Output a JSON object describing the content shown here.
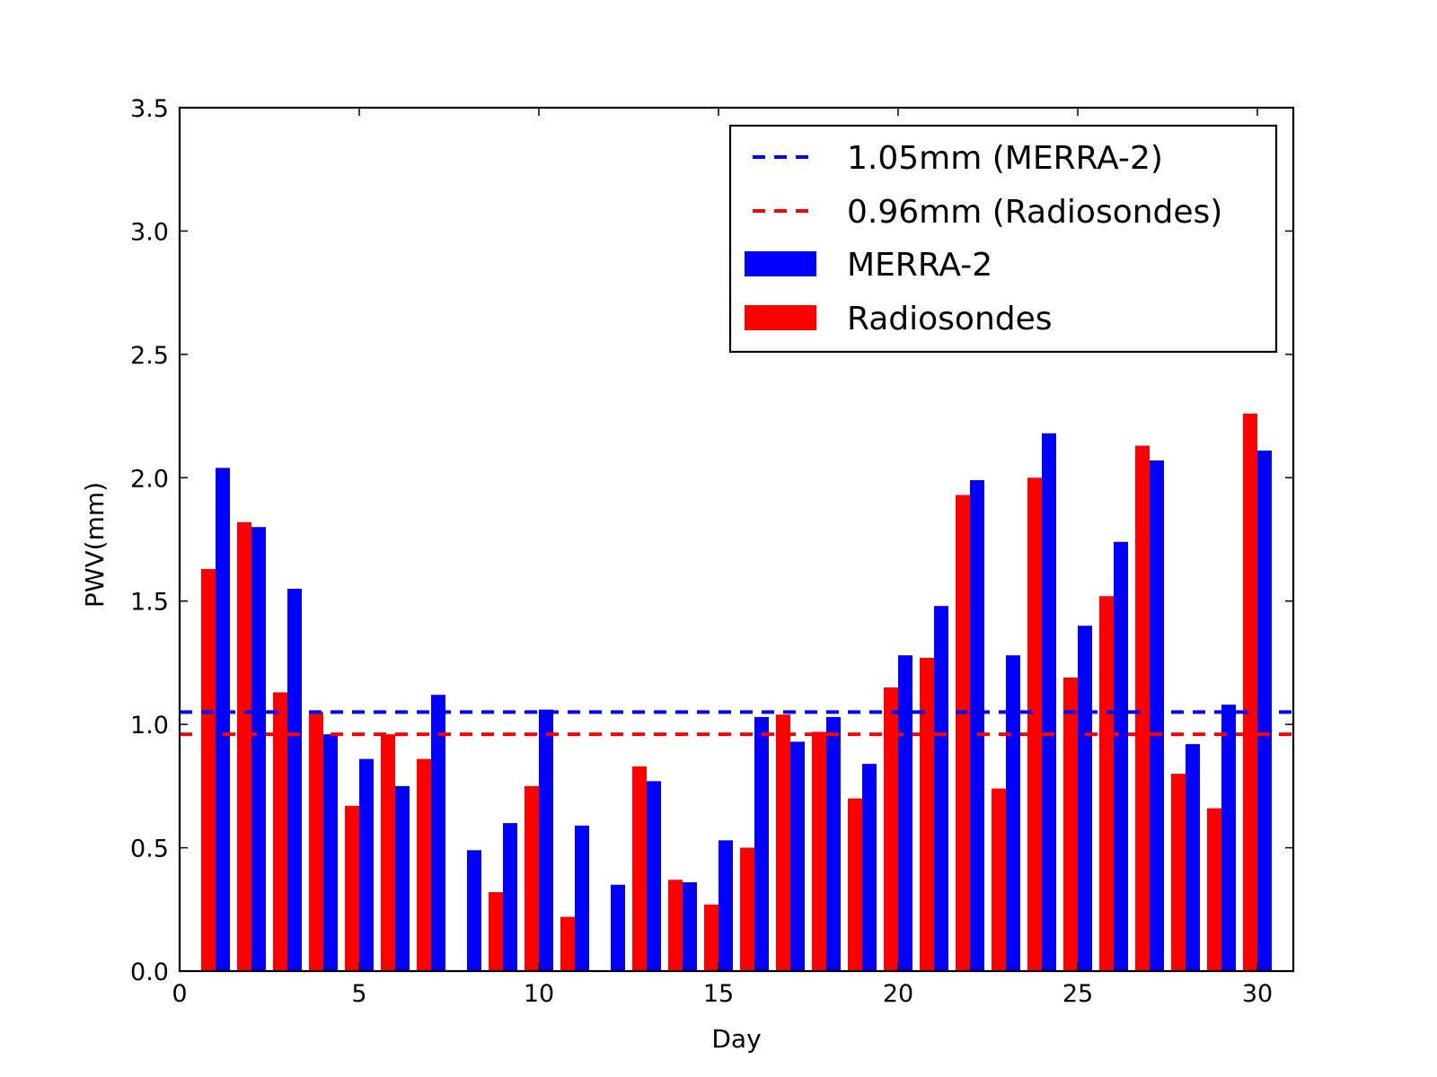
{
  "chart_data": {
    "type": "bar",
    "title": "",
    "xlabel": "Day",
    "ylabel": "PWV(mm)",
    "xlim": [
      0,
      31
    ],
    "ylim": [
      0,
      3.5
    ],
    "xticks": [
      0,
      5,
      10,
      15,
      20,
      25,
      30
    ],
    "yticks": [
      0.0,
      0.5,
      1.0,
      1.5,
      2.0,
      2.5,
      3.0,
      3.5
    ],
    "xtick_labels": [
      "0",
      "5",
      "10",
      "15",
      "20",
      "25",
      "30"
    ],
    "ytick_labels": [
      "0.0",
      "0.5",
      "1.0",
      "1.5",
      "2.0",
      "2.5",
      "3.0",
      "3.5"
    ],
    "grid": false,
    "legend_position": "top-right",
    "days": [
      1,
      2,
      3,
      4,
      5,
      6,
      7,
      8,
      9,
      10,
      11,
      12,
      13,
      14,
      15,
      16,
      17,
      18,
      19,
      20,
      21,
      22,
      23,
      24,
      25,
      26,
      27,
      28,
      29,
      30
    ],
    "series": [
      {
        "name": "Radiosondes",
        "color": "#ff0000",
        "values": [
          1.63,
          1.82,
          1.13,
          1.05,
          0.67,
          0.96,
          0.86,
          null,
          0.32,
          0.75,
          0.22,
          null,
          0.83,
          0.37,
          0.27,
          0.5,
          1.04,
          0.97,
          0.7,
          1.15,
          1.27,
          1.93,
          0.74,
          2.0,
          1.19,
          1.52,
          2.13,
          0.8,
          0.66,
          2.26
        ]
      },
      {
        "name": "MERRA-2",
        "color": "#0000ff",
        "values": [
          2.04,
          1.8,
          1.55,
          0.96,
          0.86,
          0.75,
          1.12,
          0.49,
          0.6,
          1.06,
          0.59,
          0.35,
          0.77,
          0.36,
          0.53,
          1.03,
          0.93,
          1.03,
          0.84,
          1.28,
          1.48,
          1.99,
          1.28,
          2.18,
          1.4,
          1.74,
          2.07,
          0.92,
          1.08,
          2.11
        ]
      }
    ],
    "reference_lines": [
      {
        "label": "1.05mm (MERRA-2)",
        "value": 1.05,
        "color": "#0000ff",
        "style": "dashed"
      },
      {
        "label": "0.96mm (Radiosondes)",
        "value": 0.96,
        "color": "#ff0000",
        "style": "dashed"
      }
    ]
  }
}
